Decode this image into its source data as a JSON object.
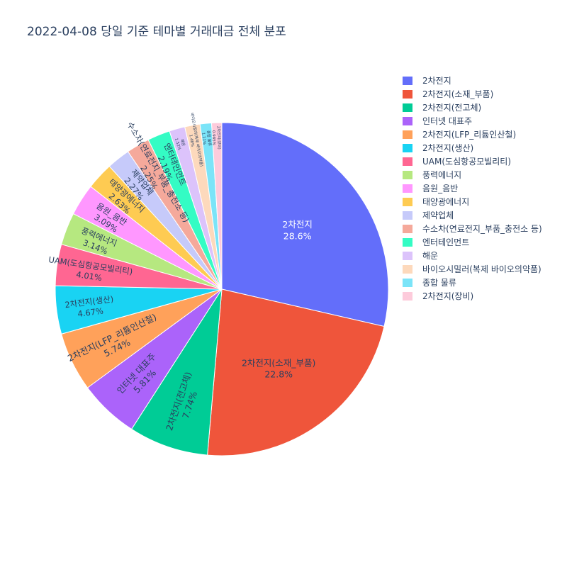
{
  "chart_data": {
    "type": "pie",
    "title": "2022-04-08 당일 기준 테마별 거래대금 전체 분포",
    "series": [
      {
        "name": "2차전지",
        "value": 28.6,
        "label": "28.6%",
        "color": "#636efa"
      },
      {
        "name": "2차전지(소재_부품)",
        "value": 22.8,
        "label": "22.8%",
        "color": "#EF553B"
      },
      {
        "name": "2차전지(전고체)",
        "value": 7.74,
        "label": "7.74%",
        "color": "#00cc96"
      },
      {
        "name": "인터넷 대표주",
        "value": 5.81,
        "label": "5.81%",
        "color": "#ab63fa"
      },
      {
        "name": "2차전지(LFP_리튬인산철)",
        "value": 5.74,
        "label": "5.74%",
        "color": "#FFA15A"
      },
      {
        "name": "2차전지(생산)",
        "value": 4.67,
        "label": "4.67%",
        "color": "#19d3f3"
      },
      {
        "name": "UAM(도심항공모빌리티)",
        "value": 4.01,
        "label": "4.01%",
        "color": "#FF6692"
      },
      {
        "name": "풍력에너지",
        "value": 3.14,
        "label": "3.14%",
        "color": "#B6E880"
      },
      {
        "name": "음원_음반",
        "value": 3.09,
        "label": "3.09%",
        "color": "#FF97FF"
      },
      {
        "name": "태양광에너지",
        "value": 2.63,
        "label": "2.63%",
        "color": "#FECB52"
      },
      {
        "name": "제약업체",
        "value": 2.27,
        "label": "2.27%",
        "color": "#c6cafa"
      },
      {
        "name": "수소차(연료전지_부품_충전소 등)",
        "value": 2.25,
        "label": "2.25%",
        "color": "#f5a99b"
      },
      {
        "name": "엔터테인먼트",
        "value": 2.19,
        "label": "2.19%",
        "color": "#34fcc4"
      },
      {
        "name": "해운",
        "value": 1.52,
        "label": "1.52%",
        "color": "#dcc3fb"
      },
      {
        "name": "바이오시밀러(복제 바이오의약품)",
        "value": 1.48,
        "label": "1.48%",
        "color": "#fdd9bc"
      },
      {
        "name": "종합 물류",
        "value": 1.11,
        "label": "1.11%",
        "color": "#7be4f8"
      },
      {
        "name": "2차전지(장비)",
        "value": 0.985,
        "label": "0.985%",
        "color": "#fdcbdb"
      }
    ]
  }
}
